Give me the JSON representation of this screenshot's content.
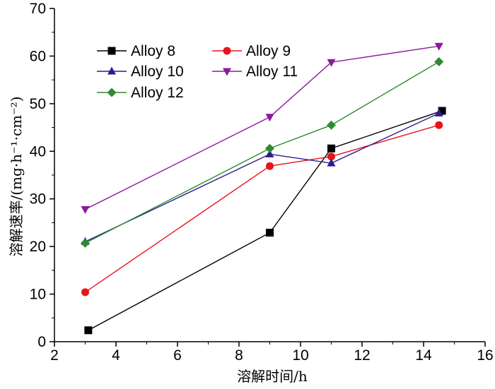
{
  "chart_data": {
    "type": "line",
    "xlabel": "溶解时间/h",
    "ylabel": "溶解速率/(mg·h⁻¹·cm⁻²)",
    "xlim": [
      2,
      16
    ],
    "ylim": [
      0,
      70
    ],
    "xticks": [
      2,
      4,
      6,
      8,
      10,
      12,
      14,
      16
    ],
    "yticks": [
      0,
      10,
      20,
      30,
      40,
      50,
      60,
      70
    ],
    "grid": false,
    "legend_position": "top-left",
    "series": [
      {
        "name": "Alloy 8",
        "color": "#000000",
        "marker": "square",
        "x": [
          3.1,
          9.0,
          11.0,
          14.6
        ],
        "values": [
          2.4,
          22.9,
          40.6,
          48.5
        ]
      },
      {
        "name": "Alloy 9",
        "color": "#e8141b",
        "marker": "circle",
        "x": [
          3.0,
          9.0,
          11.0,
          14.5
        ],
        "values": [
          10.4,
          36.9,
          38.9,
          45.5
        ]
      },
      {
        "name": "Alloy 10",
        "color": "#2c1d8f",
        "marker": "triangle-up",
        "x": [
          3.0,
          9.0,
          11.0,
          14.5
        ],
        "values": [
          21.0,
          39.4,
          37.5,
          48.0
        ]
      },
      {
        "name": "Alloy 11",
        "color": "#8b1a9c",
        "marker": "triangle-down",
        "x": [
          3.0,
          9.0,
          11.0,
          14.5
        ],
        "values": [
          27.8,
          47.2,
          58.7,
          62.1
        ]
      },
      {
        "name": "Alloy 12",
        "color": "#2e8b2e",
        "marker": "diamond",
        "x": [
          3.0,
          9.0,
          11.0,
          14.5
        ],
        "values": [
          20.7,
          40.6,
          45.5,
          58.8
        ]
      }
    ]
  }
}
